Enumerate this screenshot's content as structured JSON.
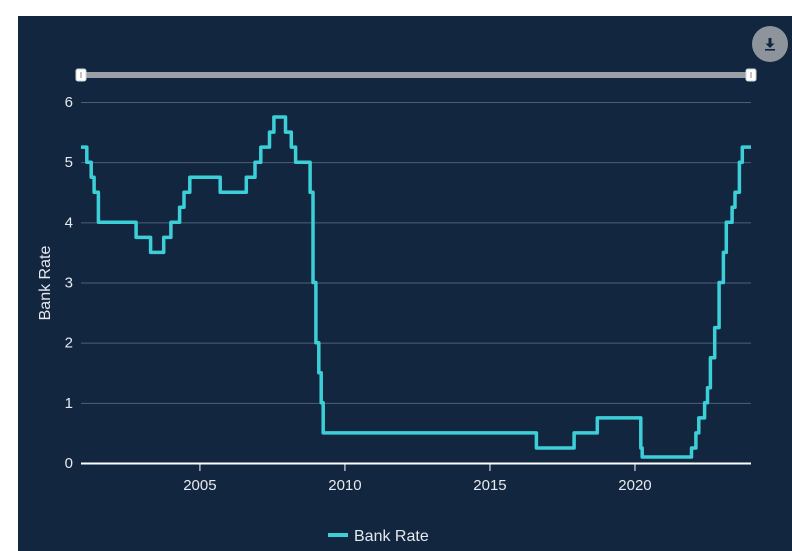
{
  "chart_data": {
    "type": "line",
    "title": "",
    "xlabel": "",
    "ylabel": "Bank Rate",
    "xlim": [
      2000.9,
      2024.0
    ],
    "ylim": [
      0,
      6
    ],
    "grid": true,
    "legend_position": "bottom-center",
    "x_ticks": [
      {
        "value": 2005,
        "label": "2005"
      },
      {
        "value": 2010,
        "label": "2010"
      },
      {
        "value": 2015,
        "label": "2015"
      },
      {
        "value": 2020,
        "label": "2020"
      }
    ],
    "y_ticks": [
      {
        "value": 0,
        "label": "0"
      },
      {
        "value": 1,
        "label": "1"
      },
      {
        "value": 2,
        "label": "2"
      },
      {
        "value": 3,
        "label": "3"
      },
      {
        "value": 4,
        "label": "4"
      },
      {
        "value": 5,
        "label": "5"
      },
      {
        "value": 6,
        "label": "6"
      }
    ],
    "series": [
      {
        "name": "Bank Rate",
        "color": "#3dcfd8",
        "step": true,
        "points": [
          [
            2000.9,
            5.25
          ],
          [
            2001.1,
            5.0
          ],
          [
            2001.25,
            4.75
          ],
          [
            2001.35,
            4.5
          ],
          [
            2001.5,
            4.0
          ],
          [
            2002.8,
            3.75
          ],
          [
            2003.3,
            3.5
          ],
          [
            2003.75,
            3.75
          ],
          [
            2004.0,
            4.0
          ],
          [
            2004.3,
            4.25
          ],
          [
            2004.45,
            4.5
          ],
          [
            2004.65,
            4.75
          ],
          [
            2005.7,
            4.5
          ],
          [
            2006.6,
            4.75
          ],
          [
            2006.9,
            5.0
          ],
          [
            2007.1,
            5.25
          ],
          [
            2007.4,
            5.5
          ],
          [
            2007.55,
            5.75
          ],
          [
            2007.95,
            5.5
          ],
          [
            2008.15,
            5.25
          ],
          [
            2008.3,
            5.0
          ],
          [
            2008.8,
            4.5
          ],
          [
            2008.9,
            3.0
          ],
          [
            2009.0,
            2.0
          ],
          [
            2009.1,
            1.5
          ],
          [
            2009.18,
            1.0
          ],
          [
            2009.25,
            0.5
          ],
          [
            2016.6,
            0.25
          ],
          [
            2017.9,
            0.5
          ],
          [
            2018.7,
            0.75
          ],
          [
            2020.2,
            0.25
          ],
          [
            2020.25,
            0.1
          ],
          [
            2021.95,
            0.25
          ],
          [
            2022.1,
            0.5
          ],
          [
            2022.2,
            0.75
          ],
          [
            2022.4,
            1.0
          ],
          [
            2022.5,
            1.25
          ],
          [
            2022.6,
            1.75
          ],
          [
            2022.75,
            2.25
          ],
          [
            2022.9,
            3.0
          ],
          [
            2023.05,
            3.5
          ],
          [
            2023.15,
            4.0
          ],
          [
            2023.35,
            4.25
          ],
          [
            2023.45,
            4.5
          ],
          [
            2023.6,
            5.0
          ],
          [
            2023.7,
            5.25
          ],
          [
            2024.0,
            5.25
          ]
        ]
      }
    ]
  },
  "toolbar": {
    "download_icon": "download-icon"
  }
}
